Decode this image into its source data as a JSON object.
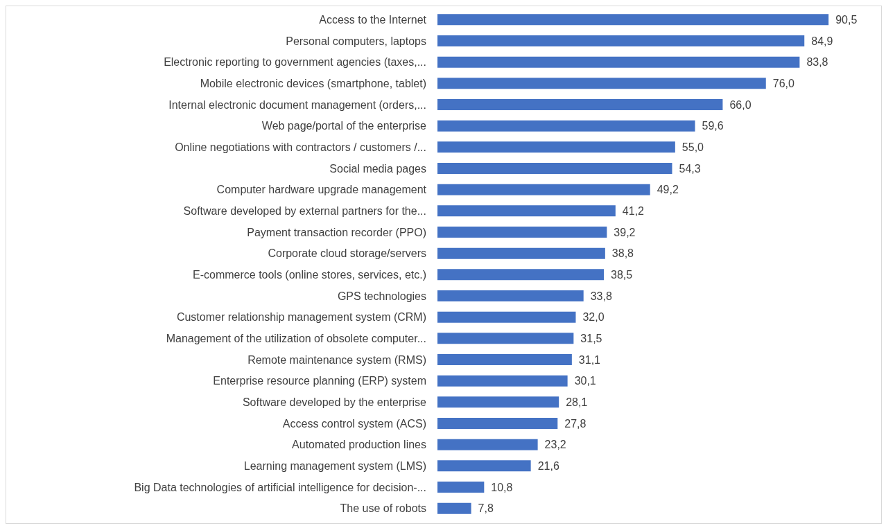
{
  "chart_data": {
    "type": "bar",
    "orientation": "horizontal",
    "color": "#4472c4",
    "categories": [
      "Access to the Internet",
      "Personal computers, laptops",
      "Electronic reporting to government agencies (taxes,...",
      "Mobile electronic devices (smartphone, tablet)",
      "Internal electronic document management (orders,...",
      "Web page/portal of the enterprise",
      "Online negotiations with contractors / customers /...",
      "Social media pages",
      "Computer hardware upgrade management",
      "Software developed by external partners for the...",
      "Payment transaction recorder (PPO)",
      "Corporate cloud storage/servers",
      "E-commerce tools (online stores, services, etc.)",
      "GPS technologies",
      "Customer relationship management system (CRM)",
      "Management of the utilization of obsolete computer...",
      "Remote maintenance system (RMS)",
      "Enterprise resource planning (ERP) system",
      "Software developed by the enterprise",
      "Access control system (ACS)",
      "Automated production lines",
      "Learning management system (LMS)",
      "Big Data technologies of artificial intelligence for decision-...",
      "The use of robots"
    ],
    "values": [
      90.5,
      84.9,
      83.8,
      76.0,
      66.0,
      59.6,
      55.0,
      54.3,
      49.2,
      41.2,
      39.2,
      38.8,
      38.5,
      33.8,
      32.0,
      31.5,
      31.1,
      30.1,
      28.1,
      27.8,
      23.2,
      21.6,
      10.8,
      7.8
    ],
    "value_labels": [
      "90,5",
      "84,9",
      "83,8",
      "76,0",
      "66,0",
      "59,6",
      "55,0",
      "54,3",
      "49,2",
      "41,2",
      "39,2",
      "38,8",
      "38,5",
      "33,8",
      "32,0",
      "31,5",
      "31,1",
      "30,1",
      "28,1",
      "27,8",
      "23,2",
      "21,6",
      "10,8",
      "7,8"
    ],
    "grid": false,
    "legend": false
  }
}
